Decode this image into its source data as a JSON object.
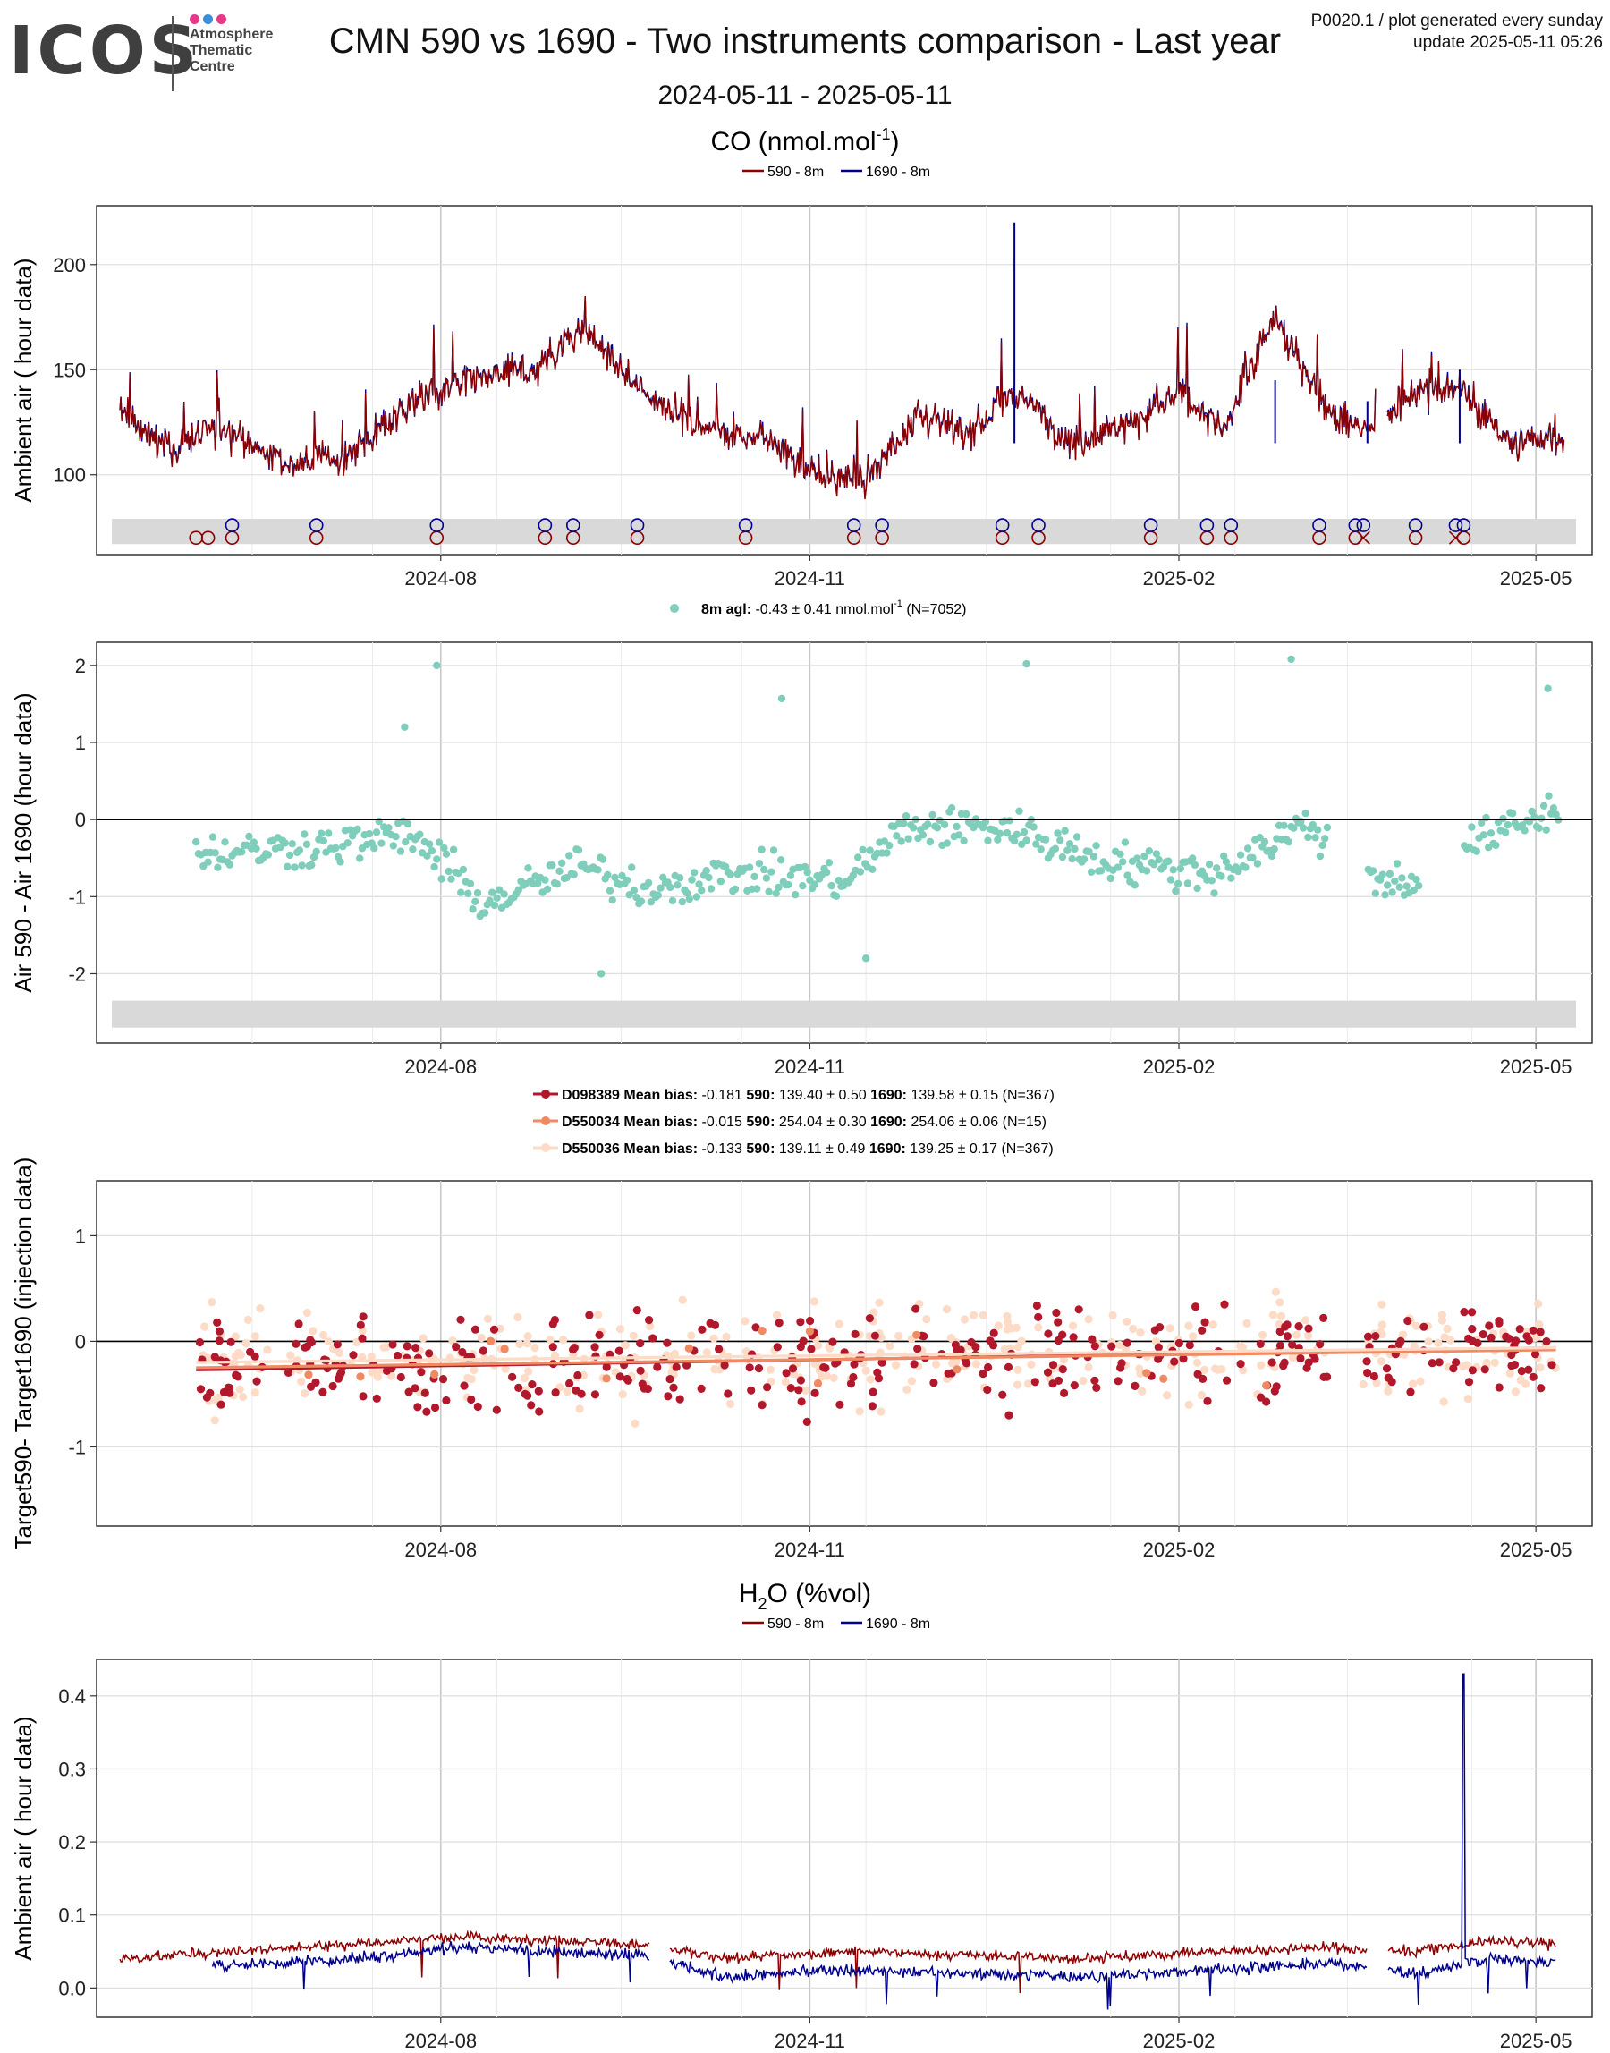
{
  "header": {
    "logo_text": "ICOS",
    "logo_sub": [
      "Atmosphere",
      "Thematic",
      "Centre"
    ],
    "logo_dot_colors": [
      "#e6398a",
      "#3a8fd8",
      "#e6398a"
    ],
    "title": "CMN 590 vs 1690 - Two instruments comparison - Last year",
    "info_line1": "P0020.1 / plot generated every sunday",
    "info_line2": "update  2025-05-11 05:26",
    "date_range": "2024-05-11 - 2025-05-11"
  },
  "colors": {
    "inst590": "#8b0000",
    "inst1690": "#00008b",
    "diff": "#7fcdbb",
    "D098389": "#b2182b",
    "D550034": "#ef8a62",
    "D550036": "#fddbc7",
    "flagband": "#d9d9d9"
  },
  "panels": {
    "co": {
      "title": "CO (nmol.mol",
      "title_sup": "-1",
      "title_end": ")",
      "legend": [
        "590 - 8m",
        "1690 - 8m"
      ],
      "ylabel": "Ambient air ( hour data)"
    },
    "diff": {
      "legend_label": "8m agl:",
      "legend_stats": "-0.43 ± 0.41 nmol.mol",
      "legend_sup": "-1",
      "legend_n": "(N=7052)",
      "ylabel": "Air 590 - Air 1690 (hour data)"
    },
    "target": {
      "legend": [
        {
          "id": "D098389",
          "bias_label": "Mean bias:",
          "bias": "-0.181",
          "l590": "590:",
          "v590": "139.40 ± 0.50",
          "l1690": "1690:",
          "v1690": "139.58 ± 0.15 (N=367)"
        },
        {
          "id": "D550034",
          "bias_label": "Mean bias:",
          "bias": "-0.015",
          "l590": "590:",
          "v590": "254.04 ± 0.30",
          "l1690": "1690:",
          "v1690": "254.06 ± 0.06 (N=15)"
        },
        {
          "id": "D550036",
          "bias_label": "Mean bias:",
          "bias": "-0.133",
          "l590": "590:",
          "v590": "139.11 ± 0.49",
          "l1690": "1690:",
          "v1690": "139.25 ± 0.17 (N=367)"
        }
      ],
      "ylabel": "Target590- Target1690 (injection data)"
    },
    "h2o": {
      "title": "H",
      "title_sub": "2",
      "title_end": "O (%vol)",
      "legend": [
        "590 - 8m",
        "1690 - 8m"
      ],
      "ylabel": "Ambient air ( hour data)"
    }
  },
  "chart_data": [
    {
      "type": "line",
      "name": "co",
      "xlim": [
        "2024-05-11",
        "2025-05-11"
      ],
      "ylim": [
        62,
        228
      ],
      "yticks": [
        100,
        150,
        200
      ],
      "xticks": [
        "2024-08",
        "2024-11",
        "2025-02",
        "2025-05"
      ],
      "grid": true,
      "series": [
        {
          "name": "590 - 8m",
          "x": [
            "2024-05-13",
            "2024-05-25",
            "2024-06-08",
            "2024-06-22",
            "2024-07-08",
            "2024-07-25",
            "2024-08-10",
            "2024-08-25",
            "2024-09-05",
            "2024-09-20",
            "2024-10-05",
            "2024-10-20",
            "2024-11-02",
            "2024-11-15",
            "2024-11-28",
            "2024-12-10",
            "2024-12-22",
            "2025-01-05",
            "2025-01-20",
            "2025-02-01",
            "2025-02-12",
            "2025-02-25",
            "2025-03-10",
            "2025-03-20",
            "2025-04-01",
            "2025-04-12",
            "2025-04-25",
            "2025-05-05"
          ],
          "y": [
            130,
            112,
            122,
            105,
            108,
            135,
            145,
            150,
            170,
            140,
            122,
            118,
            100,
            98,
            128,
            118,
            140,
            115,
            125,
            140,
            120,
            175,
            130,
            120,
            140,
            140,
            115,
            118
          ]
        },
        {
          "name": "1690 - 8m",
          "x": [
            "2024-12-22",
            "2025-02-25",
            "2025-03-20",
            "2025-04-12"
          ],
          "y": [
            220,
            145,
            135,
            150
          ]
        }
      ],
      "flags_590": [
        "2024-06-01",
        "2024-06-04",
        "2024-06-10",
        "2024-07-01",
        "2024-07-31",
        "2024-08-27",
        "2024-09-03",
        "2024-09-19",
        "2024-10-16",
        "2024-11-12",
        "2024-11-19",
        "2024-12-19",
        "2024-12-28",
        "2025-01-25",
        "2025-02-08",
        "2025-02-14",
        "2025-03-08",
        "2025-03-17",
        "2025-03-19",
        "2025-04-01",
        "2025-04-11",
        "2025-04-13"
      ],
      "flags_1690": [
        "2024-06-10",
        "2024-07-01",
        "2024-07-31",
        "2024-08-27",
        "2024-09-03",
        "2024-09-19",
        "2024-10-16",
        "2024-11-12",
        "2024-11-19",
        "2024-12-19",
        "2024-12-28",
        "2025-01-25",
        "2025-02-08",
        "2025-02-14",
        "2025-03-08",
        "2025-03-17",
        "2025-03-19",
        "2025-04-01",
        "2025-04-11",
        "2025-04-13"
      ]
    },
    {
      "type": "scatter",
      "name": "diff",
      "xlim": [
        "2024-05-11",
        "2025-05-11"
      ],
      "ylim": [
        -2.9,
        2.3
      ],
      "yticks": [
        -2,
        -1,
        0,
        1,
        2
      ],
      "xticks": [
        "2024-08",
        "2024-11",
        "2025-02",
        "2025-05"
      ],
      "grid": true,
      "mean": -0.43,
      "sd": 0.41,
      "n": 7052,
      "notable_points": {
        "x": [
          "2024-07-31",
          "2024-10-25",
          "2024-12-25",
          "2025-03-01",
          "2025-05-04",
          "2024-07-23",
          "2024-09-10",
          "2024-11-15"
        ],
        "y": [
          2.0,
          1.57,
          2.02,
          2.08,
          1.7,
          1.2,
          -2.0,
          -1.8
        ]
      }
    },
    {
      "type": "scatter",
      "name": "target",
      "xlim": [
        "2024-05-11",
        "2025-05-11"
      ],
      "ylim": [
        -1.75,
        1.52
      ],
      "yticks": [
        -1,
        0,
        1
      ],
      "xticks": [
        "2024-08",
        "2024-11",
        "2025-02",
        "2025-05"
      ],
      "grid": true,
      "series": [
        {
          "name": "D098389",
          "trend": {
            "x": [
              "2024-06-01",
              "2025-05-06"
            ],
            "y": [
              -0.27,
              -0.06
            ]
          }
        },
        {
          "name": "D550034",
          "trend": {
            "x": [
              "2024-06-01",
              "2025-05-06"
            ],
            "y": [
              -0.25,
              -0.08
            ]
          }
        },
        {
          "name": "D550036",
          "trend": {
            "x": [
              "2024-06-01",
              "2025-05-06"
            ],
            "y": [
              -0.2,
              -0.06
            ]
          }
        }
      ]
    },
    {
      "type": "line",
      "name": "h2o",
      "xlim": [
        "2024-05-11",
        "2025-05-11"
      ],
      "ylim": [
        -0.04,
        0.45
      ],
      "yticks": [
        0.0,
        0.1,
        0.2,
        0.3,
        0.4
      ],
      "xticks": [
        "2024-08",
        "2024-11",
        "2025-02",
        "2025-05"
      ],
      "grid": true,
      "series": [
        {
          "name": "590 - 8m",
          "x": [
            "2024-05-13",
            "2024-06-10",
            "2024-07-10",
            "2024-08-05",
            "2024-09-01",
            "2024-09-20",
            "2024-10-10",
            "2024-11-10",
            "2024-12-10",
            "2025-01-10",
            "2025-02-10",
            "2025-03-10",
            "2025-04-01",
            "2025-04-20",
            "2025-05-06"
          ],
          "y": [
            0.04,
            0.05,
            0.06,
            0.07,
            0.065,
            0.06,
            0.04,
            0.05,
            0.045,
            0.04,
            0.05,
            0.055,
            0.05,
            0.065,
            0.06
          ]
        },
        {
          "name": "1690 - 8m",
          "x": [
            "2024-06-05",
            "2024-07-10",
            "2024-08-05",
            "2024-09-01",
            "2024-09-20",
            "2024-10-10",
            "2024-11-10",
            "2024-12-10",
            "2025-01-10",
            "2025-02-10",
            "2025-03-10",
            "2025-04-01",
            "2025-04-13",
            "2025-04-20",
            "2025-05-06"
          ],
          "y": [
            0.03,
            0.04,
            0.055,
            0.05,
            0.045,
            0.015,
            0.025,
            0.02,
            0.015,
            0.025,
            0.035,
            0.02,
            0.43,
            0.04,
            0.035
          ]
        }
      ]
    }
  ]
}
